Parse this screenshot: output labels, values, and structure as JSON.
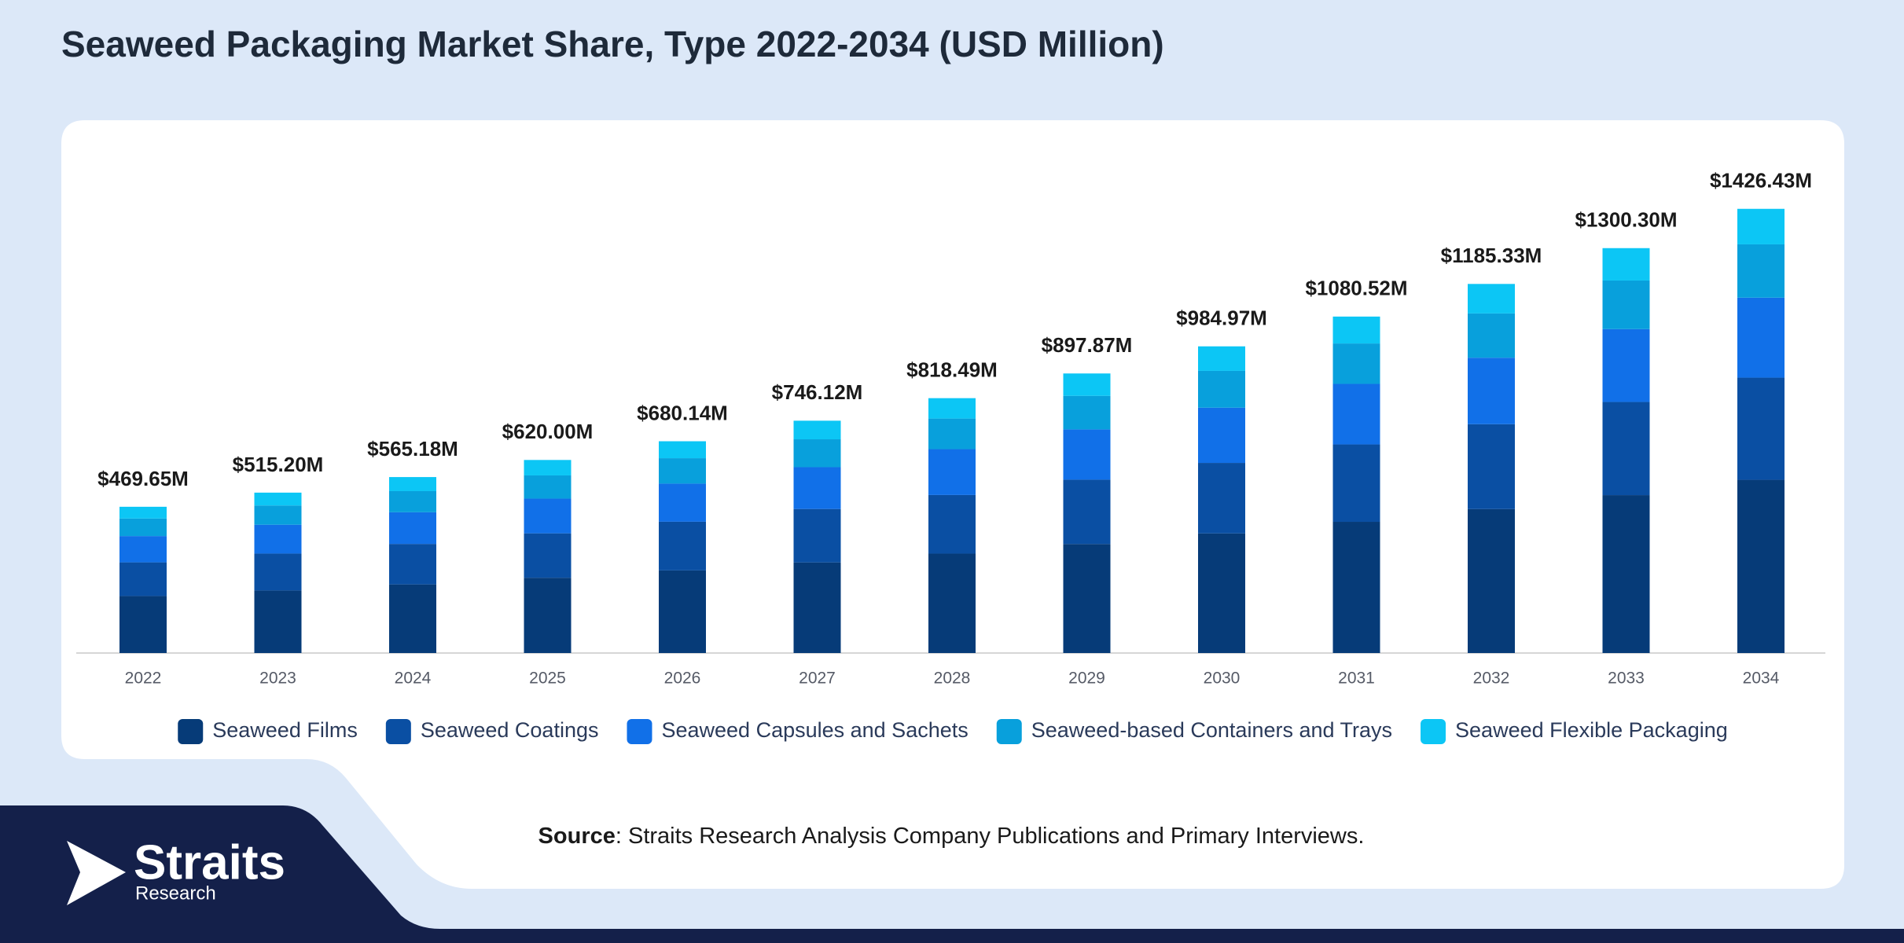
{
  "chart_data": {
    "type": "stacked-bar",
    "title": "Seaweed Packaging Market Share, Type 2022-2034 (USD Million)",
    "categories": [
      "2022",
      "2023",
      "2024",
      "2025",
      "2026",
      "2027",
      "2028",
      "2029",
      "2030",
      "2031",
      "2032",
      "2033",
      "2034"
    ],
    "series": [
      {
        "name": "Seaweed Films",
        "color": "#063b78",
        "values": [
          183.2,
          200.9,
          220.4,
          241.8,
          265.3,
          291.0,
          319.2,
          350.2,
          384.1,
          421.4,
          462.3,
          507.1,
          556.3
        ]
      },
      {
        "name": "Seaweed Coatings",
        "color": "#0a4fa3",
        "values": [
          108.0,
          118.5,
          130.0,
          142.6,
          156.4,
          171.6,
          188.3,
          206.5,
          226.5,
          248.5,
          272.6,
          299.1,
          328.1
        ]
      },
      {
        "name": "Seaweed Capsules and Sachets",
        "color": "#1170e8",
        "values": [
          84.5,
          92.7,
          101.7,
          111.6,
          122.4,
          134.3,
          147.3,
          161.6,
          177.3,
          194.5,
          213.4,
          234.1,
          256.8
        ]
      },
      {
        "name": "Seaweed-based Containers and Trays",
        "color": "#08a0dc",
        "values": [
          56.4,
          61.8,
          67.8,
          74.4,
          81.6,
          89.5,
          98.2,
          107.7,
          118.2,
          129.7,
          142.2,
          156.0,
          171.2
        ]
      },
      {
        "name": "Seaweed Flexible Packaging",
        "color": "#0cc6f5",
        "values": [
          37.6,
          41.2,
          45.2,
          49.6,
          54.4,
          59.7,
          65.5,
          71.8,
          78.8,
          86.4,
          94.8,
          104.0,
          114.1
        ]
      }
    ],
    "totals": {
      "values": [
        469.65,
        515.2,
        565.18,
        620.0,
        680.14,
        746.12,
        818.49,
        897.87,
        984.97,
        1080.52,
        1185.33,
        1300.3,
        1426.43
      ],
      "value_labels": [
        "$469.65M",
        "$515.20M",
        "$565.18M",
        "$620.00M",
        "$680.14M",
        "$746.12M",
        "$818.49M",
        "$897.87M",
        "$984.97M",
        "$1080.52M",
        "$1185.33M",
        "$1300.30M",
        "$1426.43M"
      ]
    },
    "ylim": [
      0,
      1600
    ],
    "legend": "bottom"
  },
  "source": {
    "label": "Source",
    "text": ": Straits Research Analysis Company Publications and Primary Interviews."
  },
  "logo": {
    "name": "Straits",
    "tagline": "Research"
  }
}
